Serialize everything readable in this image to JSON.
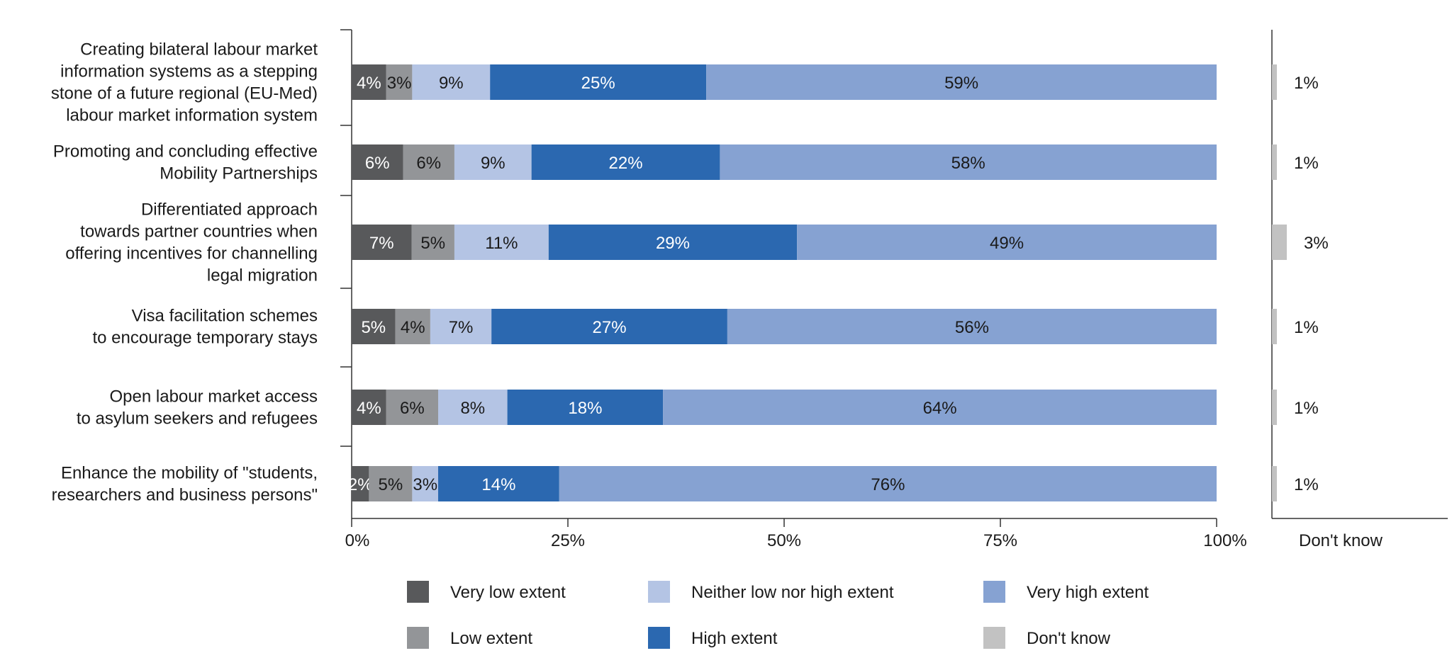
{
  "chart_data": {
    "type": "bar",
    "orientation": "horizontal",
    "stacked": true,
    "title": "",
    "categories": [
      [
        "Creating bilateral labour market",
        "information systems as a stepping",
        "stone of a future regional (EU-Med)",
        "labour market information system"
      ],
      [
        "Promoting and concluding effective",
        "Mobility Partnerships"
      ],
      [
        "Differentiated approach",
        "towards partner countries when",
        "offering incentives for channelling",
        "legal migration"
      ],
      [
        "Visa facilitation schemes",
        "to encourage temporary stays"
      ],
      [
        "Open labour market access",
        "to asylum seekers and refugees"
      ],
      [
        "Enhance the mobility of \"students,",
        "researchers and business persons\""
      ]
    ],
    "series": [
      {
        "name": "Very low extent",
        "color": "#58595b",
        "label_color": "#ffffff",
        "values": [
          4,
          6,
          7,
          5,
          4,
          2
        ]
      },
      {
        "name": "Low extent",
        "color": "#939598",
        "label_color": "#1a1a1a",
        "values": [
          3,
          6,
          5,
          4,
          6,
          5
        ]
      },
      {
        "name": "Neither low nor high extent",
        "color": "#b4c4e4",
        "label_color": "#1a1a1a",
        "values": [
          9,
          9,
          11,
          7,
          8,
          3
        ]
      },
      {
        "name": "High extent",
        "color": "#2b68b0",
        "label_color": "#ffffff",
        "values": [
          25,
          22,
          29,
          27,
          18,
          14
        ]
      },
      {
        "name": "Very high extent",
        "color": "#86a2d2",
        "label_color": "#1a1a1a",
        "values": [
          59,
          58,
          49,
          56,
          64,
          76
        ]
      }
    ],
    "dont_know": {
      "name": "Don't know",
      "color": "#c2c2c2",
      "values": [
        1,
        1,
        3,
        1,
        1,
        1
      ],
      "axis_label": "Don't know"
    },
    "x_ticks": [
      "0%",
      "25%",
      "50%",
      "75%",
      "100%"
    ],
    "xlim": [
      0,
      100
    ],
    "grid": false,
    "legend_position": "bottom"
  }
}
